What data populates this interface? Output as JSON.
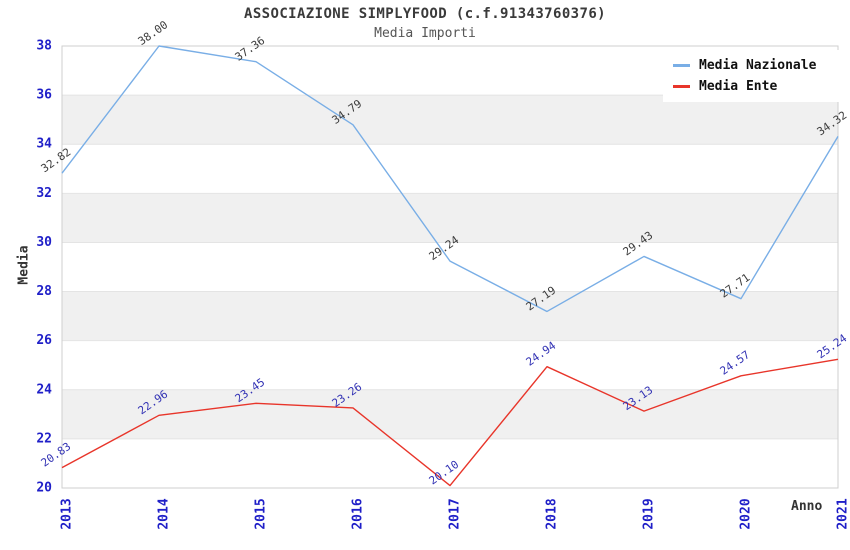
{
  "chart_data": {
    "type": "line",
    "title": "ASSOCIAZIONE SIMPLYFOOD (c.f.91343760376)",
    "subtitle": "Media Importi",
    "xlabel": "Anno",
    "ylabel": "Media",
    "x": [
      "2013",
      "2014",
      "2015",
      "2016",
      "2017",
      "2018",
      "2019",
      "2020",
      "2021"
    ],
    "series": [
      {
        "name": "Media Nazionale",
        "color": "#79aee6",
        "label_color": "#3b3b3b",
        "values": [
          32.82,
          38.0,
          37.36,
          34.79,
          29.24,
          27.19,
          29.43,
          27.71,
          34.32
        ]
      },
      {
        "name": "Media Ente",
        "color": "#e8352a",
        "label_color": "#3232b4",
        "values": [
          20.83,
          22.96,
          23.45,
          23.26,
          20.1,
          24.94,
          23.13,
          24.57,
          25.24
        ]
      }
    ],
    "ylim": [
      20,
      38
    ],
    "ytick_step": 2,
    "yticks": [
      20,
      22,
      24,
      26,
      28,
      30,
      32,
      34,
      36,
      38
    ],
    "grid": "banded-horizontal",
    "legend_position": "top-right",
    "colors": {
      "tick_label": "#1f1fc8",
      "band": "#f0f0f0",
      "gridline": "#e4e4e4",
      "plot_border": "#cfcfcf",
      "axis_title": "#333333"
    }
  }
}
